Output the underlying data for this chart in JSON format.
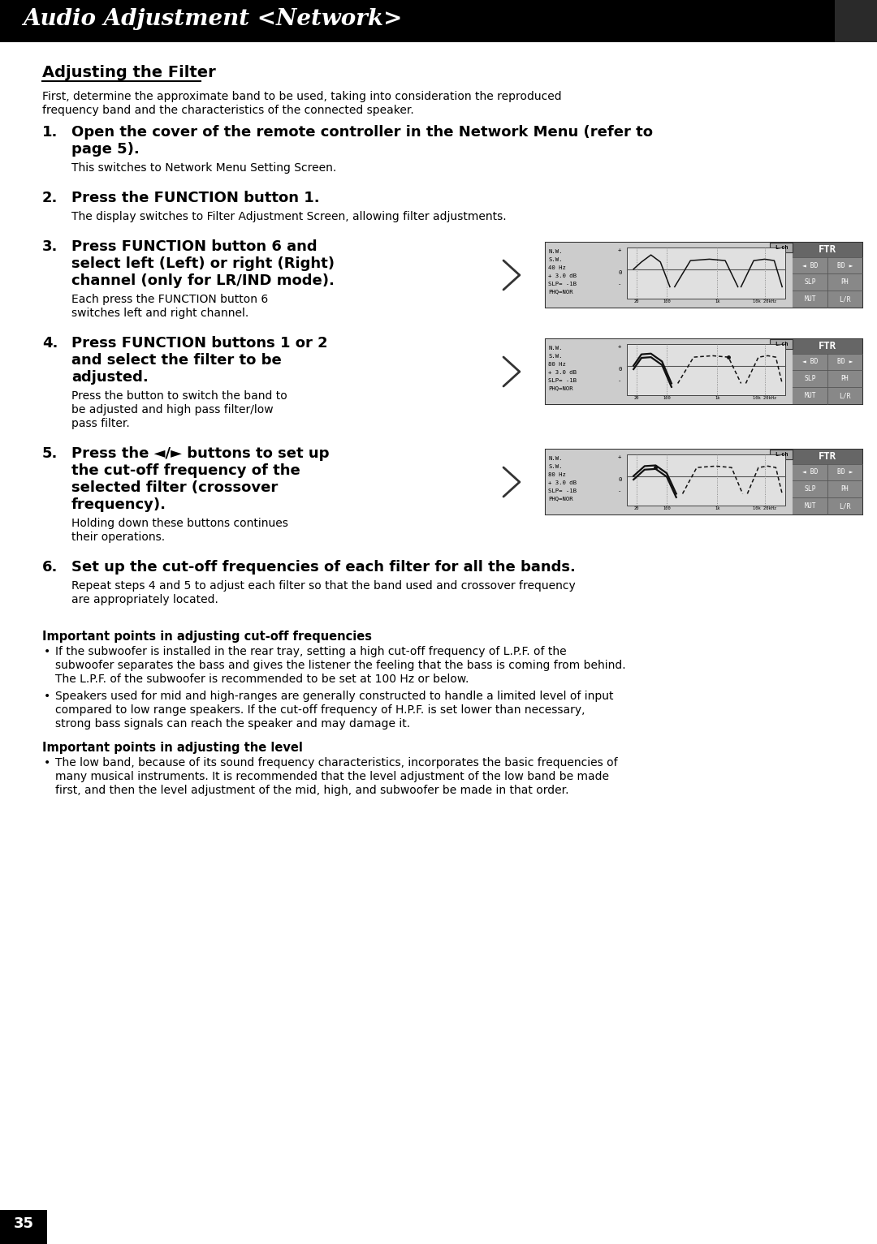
{
  "page_bg": "#ffffff",
  "header_bg": "#000000",
  "header_text": "Audio Adjustment <Network>",
  "header_text_color": "#ffffff",
  "header_font_size": 20,
  "page_number": "35",
  "page_number_bg": "#000000",
  "page_number_color": "#ffffff",
  "section_title": "Adjusting the Filter",
  "body_text_color": "#000000",
  "body_font_size": 10.0,
  "bold_font_size": 11.5,
  "step_font_size": 13.0,
  "content": [
    {
      "type": "intro",
      "text": "First, determine the approximate band to be used, taking into consideration the reproduced\nfrequency band and the characteristics of the connected speaker."
    },
    {
      "type": "step",
      "number": "1.",
      "bold_text": "Open the cover of the remote controller in the Network Menu (refer to\npage 5).",
      "body_text": "This switches to Network Menu Setting Screen."
    },
    {
      "type": "step",
      "number": "2.",
      "bold_text": "Press the FUNCTION button 1.",
      "body_text": "The display switches to Filter Adjustment Screen, allowing filter adjustments."
    },
    {
      "type": "step_with_image",
      "number": "3.",
      "bold_text": "Press FUNCTION button 6 and\nselect left (Left) or right (Right)\nchannel (only for LR/IND mode).",
      "body_text": "Each press the FUNCTION button 6\nswitches left and right channel.",
      "image_index": 0,
      "freq_label": "40 Hz"
    },
    {
      "type": "step_with_image",
      "number": "4.",
      "bold_text": "Press FUNCTION buttons 1 or 2\nand select the filter to be\nadjusted.",
      "body_text": "Press the button to switch the band to\nbe adjusted and high pass filter/low\npass filter.",
      "image_index": 1,
      "freq_label": "80 Hz"
    },
    {
      "type": "step_with_image",
      "number": "5.",
      "bold_text": "Press the ◄/► buttons to set up\nthe cut-off frequency of the\nselected filter (crossover\nfrequency).",
      "body_text": "Holding down these buttons continues\ntheir operations.",
      "image_index": 2,
      "freq_label": "80 Hz"
    },
    {
      "type": "step",
      "number": "6.",
      "bold_text": "Set up the cut-off frequencies of each filter for all the bands.",
      "body_text": "Repeat steps 4 and 5 to adjust each filter so that the band used and crossover frequency\nare appropriately located."
    }
  ],
  "important_sections": [
    {
      "title": "Important points in adjusting cut-off frequencies",
      "bullets": [
        "If the subwoofer is installed in the rear tray, setting a high cut-off frequency of L.P.F. of the\nsubwoofer separates the bass and gives the listener the feeling that the bass is coming from behind.\nThe L.P.F. of the subwoofer is recommended to be set at 100 Hz or below.",
        "Speakers used for mid and high-ranges are generally constructed to handle a limited level of input\ncompared to low range speakers. If the cut-off frequency of H.P.F. is set lower than necessary,\nstrong bass signals can reach the speaker and may damage it."
      ]
    },
    {
      "title": "Important points in adjusting the level",
      "bullets": [
        "The low band, because of its sound frequency characteristics, incorporates the basic frequencies of\nmany musical instruments. It is recommended that the level adjustment of the low band be made\nfirst, and then the level adjustment of the mid, high, and subwoofer be made in that order."
      ]
    }
  ]
}
